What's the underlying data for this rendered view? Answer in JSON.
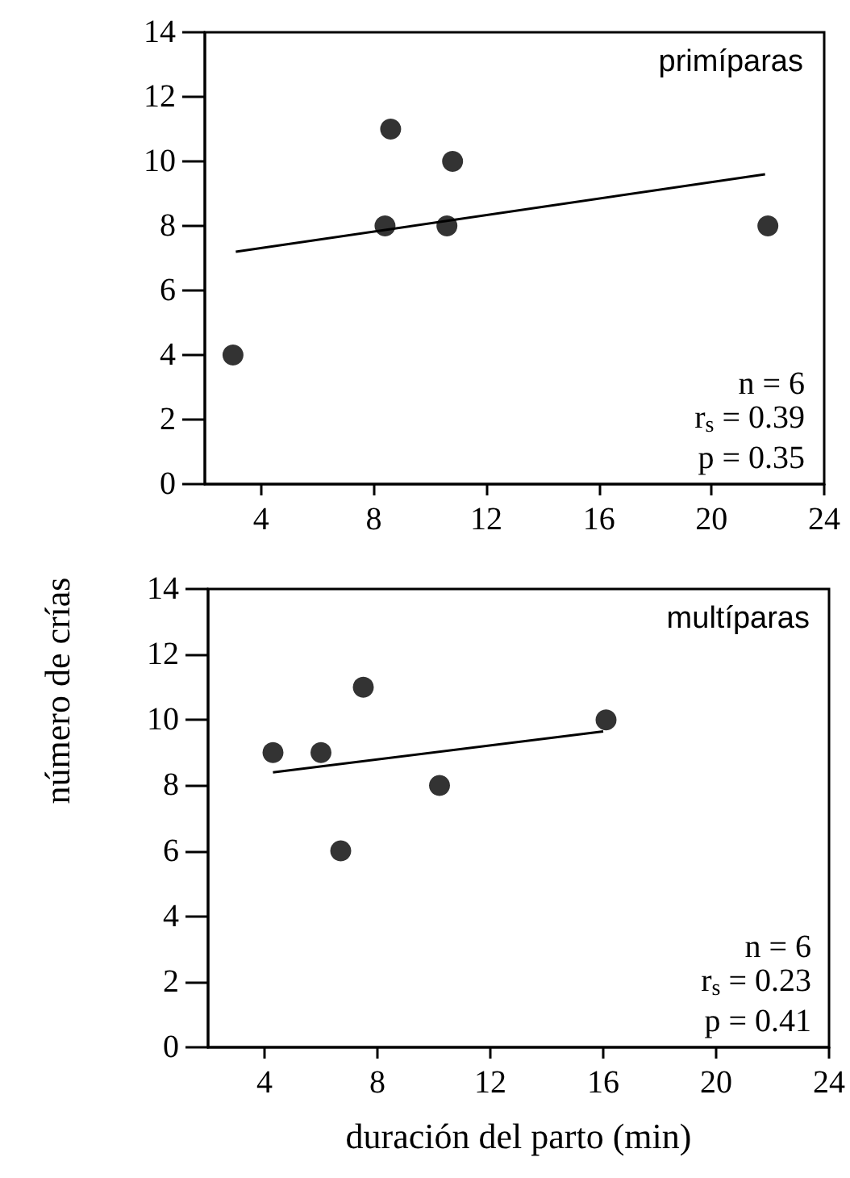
{
  "chart_data": [
    {
      "type": "scatter",
      "title": "primíparas",
      "ylabel": "número de crías",
      "xlim": [
        2,
        24
      ],
      "xticks": [
        4,
        8,
        12,
        16,
        20,
        24
      ],
      "ylim": [
        0,
        14
      ],
      "yticks": [
        0,
        2,
        4,
        6,
        8,
        10,
        12,
        14
      ],
      "grid": false,
      "marker": "circle",
      "series": [
        {
          "color": "#000000",
          "x": [
            3,
            8.4,
            8.6,
            10.6,
            10.8,
            22
          ],
          "values": [
            4,
            8,
            11,
            8,
            10,
            8
          ]
        },
        {
          "type": "line",
          "color": "#000000",
          "marker": "none",
          "line_style": "solid",
          "x": [
            3.1,
            21.9
          ],
          "values": [
            7.2,
            9.6
          ]
        }
      ],
      "annotations": [
        "n = 6",
        "r$_{s}$ = 0.39",
        "p = 0.35"
      ]
    },
    {
      "type": "scatter",
      "title": "multíparas",
      "xlabel": "duración del parto (min)",
      "xlim": [
        2,
        24
      ],
      "xticks": [
        4,
        8,
        12,
        16,
        20,
        24
      ],
      "ylim": [
        0,
        14
      ],
      "yticks": [
        0,
        2,
        4,
        6,
        8,
        10,
        12,
        14
      ],
      "grid": false,
      "marker": "circle",
      "series": [
        {
          "color": "#000000",
          "x": [
            4.3,
            6,
            6.7,
            7.5,
            10.2,
            16.1
          ],
          "values": [
            9,
            9,
            6,
            11,
            8,
            10
          ]
        },
        {
          "type": "line",
          "color": "#000000",
          "marker": "none",
          "line_style": "solid",
          "x": [
            4.3,
            16
          ],
          "values": [
            8.4,
            9.65
          ]
        }
      ],
      "annotations": [
        "n = 6",
        "r$_{s}$ = 0.23",
        "p = 0.41"
      ]
    }
  ]
}
